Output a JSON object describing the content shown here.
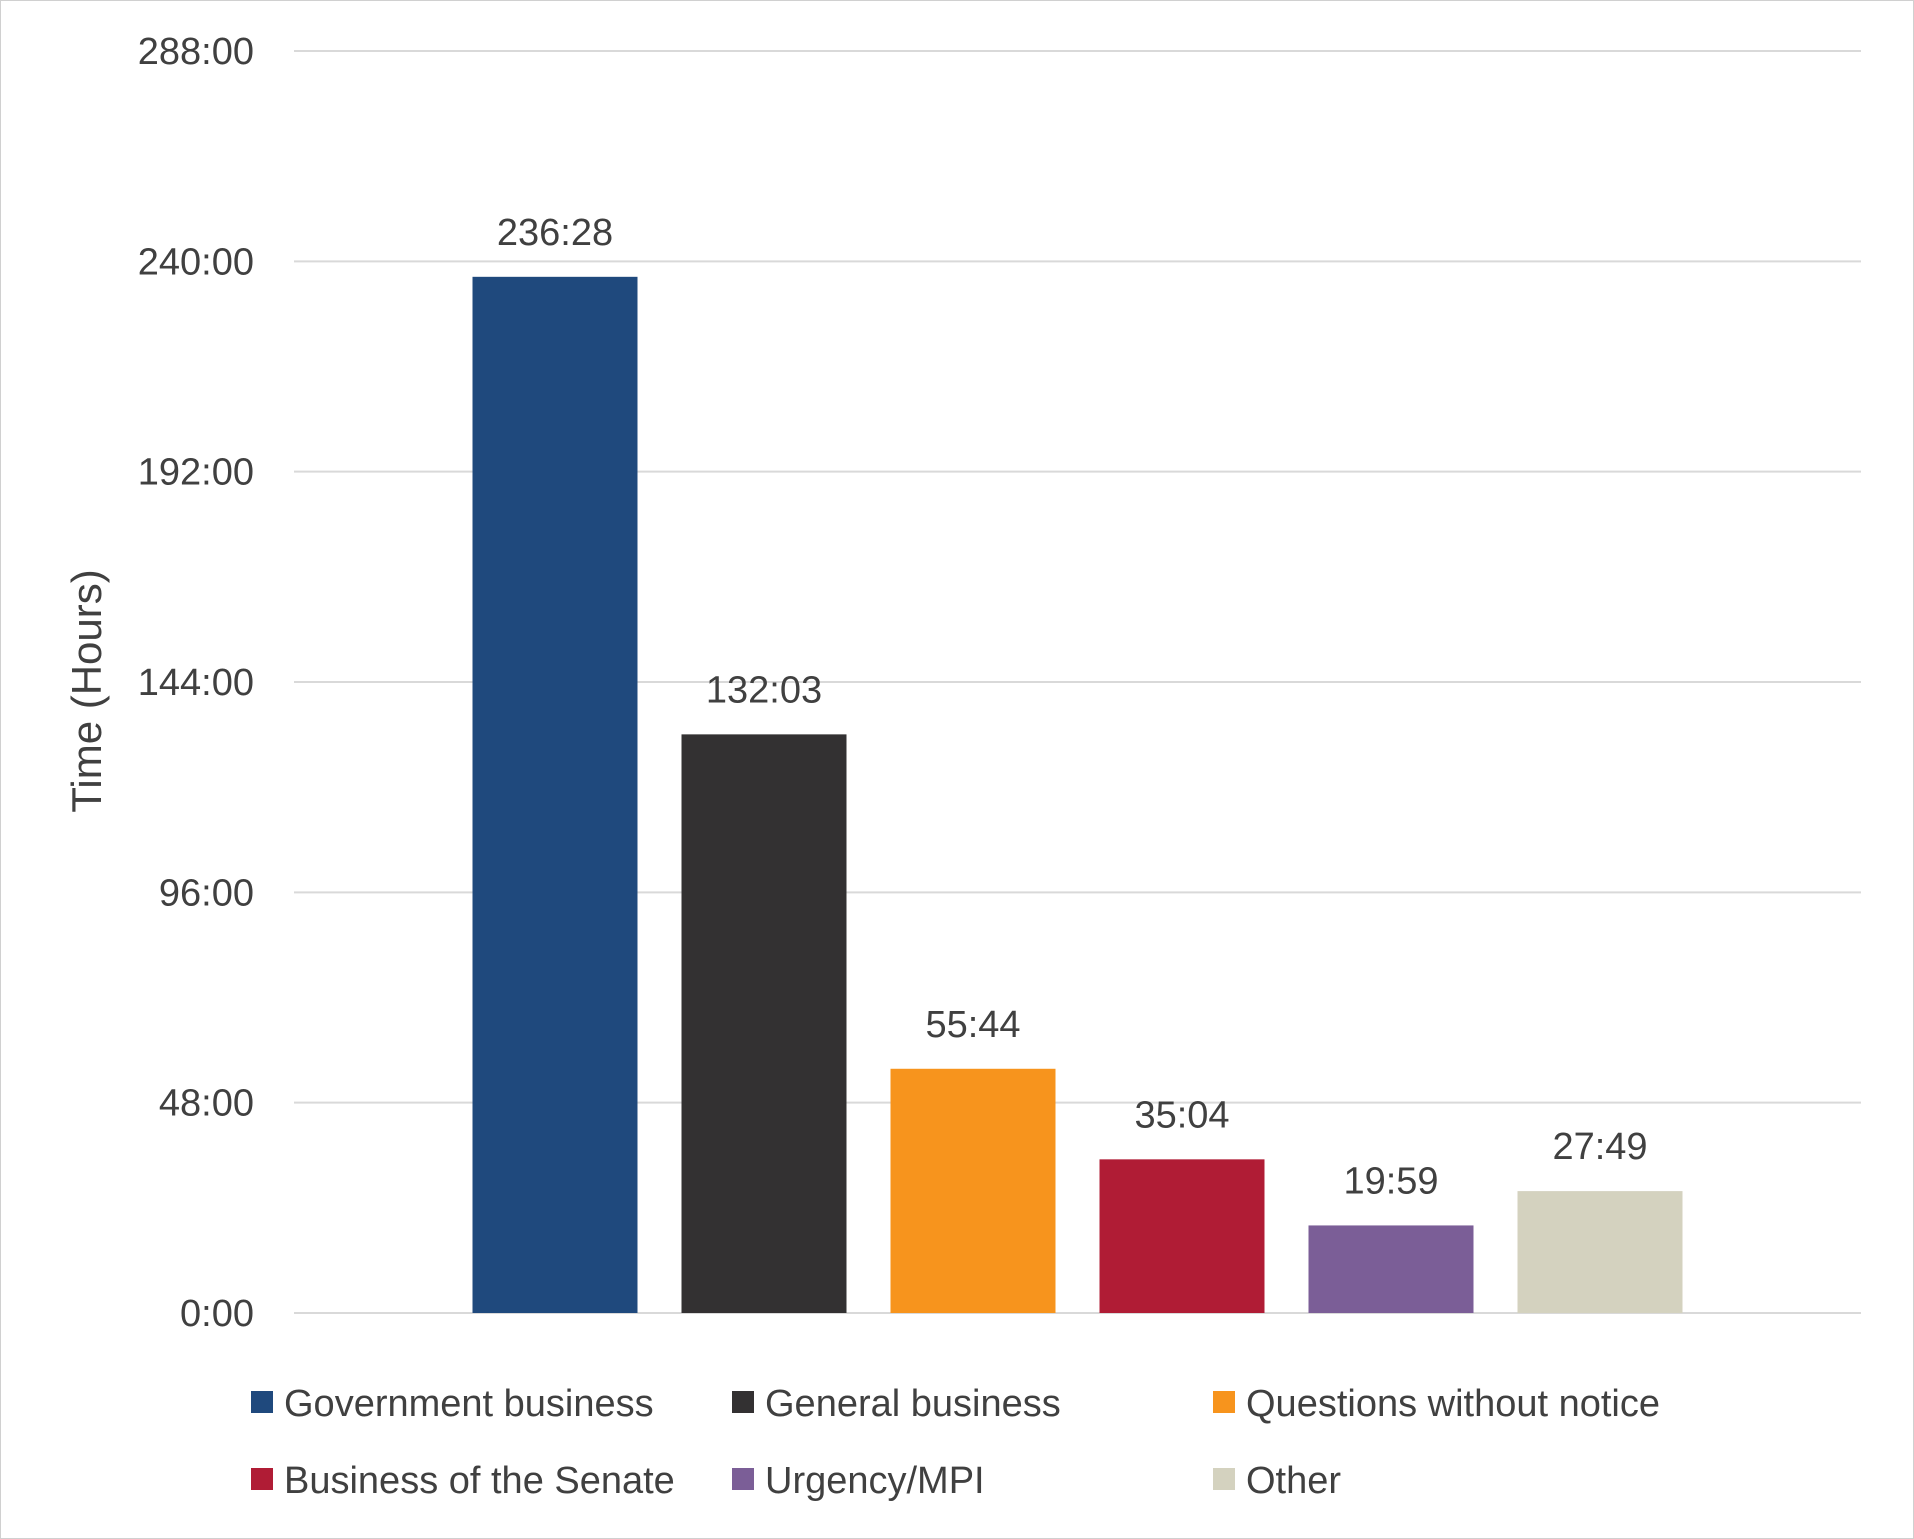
{
  "chart_data": {
    "type": "bar",
    "title": "",
    "xlabel": "",
    "ylabel": "Time (Hours)",
    "y_unit": "hours",
    "ylim": [
      0,
      288
    ],
    "yticks": [
      0,
      48,
      96,
      144,
      192,
      240,
      288
    ],
    "ytick_labels": [
      "0:00",
      "48:00",
      "96:00",
      "144:00",
      "192:00",
      "240:00",
      "288:00"
    ],
    "grid": true,
    "legend_position": "bottom",
    "categories": [
      "Government business",
      "General business",
      "Questions without notice",
      "Business of the Senate",
      "Urgency/MPI",
      "Other"
    ],
    "values": [
      236.4667,
      132.05,
      55.7333,
      35.0667,
      19.9833,
      27.8167
    ],
    "value_labels": [
      "236:28",
      "132:03",
      "55:44",
      "35:04",
      "19:59",
      "27:49"
    ],
    "colors": [
      "#1f497d",
      "#333132",
      "#f7941d",
      "#b01c35",
      "#7b5e97",
      "#d4d2bf"
    ]
  }
}
